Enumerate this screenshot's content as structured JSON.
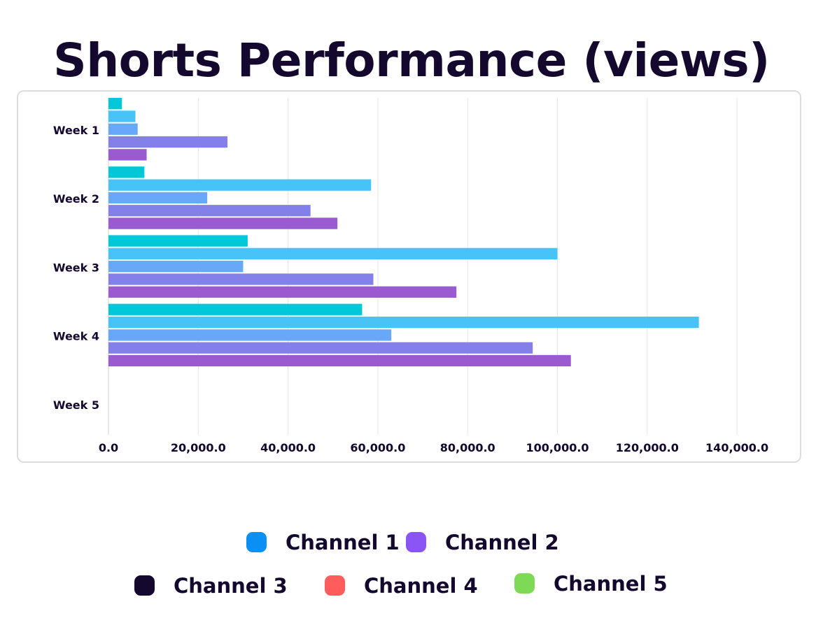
{
  "title": "Shorts Performance (views)",
  "chart_data": {
    "type": "bar",
    "orientation": "horizontal",
    "title": "Shorts Performance (views)",
    "xlabel": "",
    "ylabel": "",
    "categories": [
      "Week 1",
      "Week 2",
      "Week 3",
      "Week 4",
      "Week 5"
    ],
    "xlim": [
      0,
      140000
    ],
    "x_ticks": [
      0,
      20000,
      40000,
      60000,
      80000,
      100000,
      120000,
      140000
    ],
    "x_tick_labels": [
      "0.0",
      "20,000.0",
      "40,000.0",
      "60,000.0",
      "80,000.0",
      "100,000.0",
      "120,000.0",
      "140,000.0"
    ],
    "grid": true,
    "series": [
      {
        "color": "#00c8d8",
        "values": [
          3000,
          8000,
          31000,
          56500,
          0
        ]
      },
      {
        "color": "#48c3f7",
        "values": [
          6000,
          58500,
          100000,
          131500,
          0
        ]
      },
      {
        "color": "#68a8f8",
        "values": [
          6500,
          22000,
          30000,
          63000,
          0
        ]
      },
      {
        "color": "#8480ea",
        "values": [
          26500,
          45000,
          59000,
          94500,
          0
        ]
      },
      {
        "color": "#9b5bd0",
        "values": [
          8500,
          51000,
          77500,
          103000,
          0
        ]
      }
    ]
  },
  "legend": {
    "placement": "bottom",
    "items": [
      {
        "label": "Channel 1",
        "color": "#0a8ff5"
      },
      {
        "label": "Channel 2",
        "color": "#8b55f6"
      },
      {
        "label": "Channel 3",
        "color": "#14082e"
      },
      {
        "label": "Channel 4",
        "color": "#ff5c5c"
      },
      {
        "label": "Channel 5",
        "color": "#7ed957"
      }
    ]
  }
}
